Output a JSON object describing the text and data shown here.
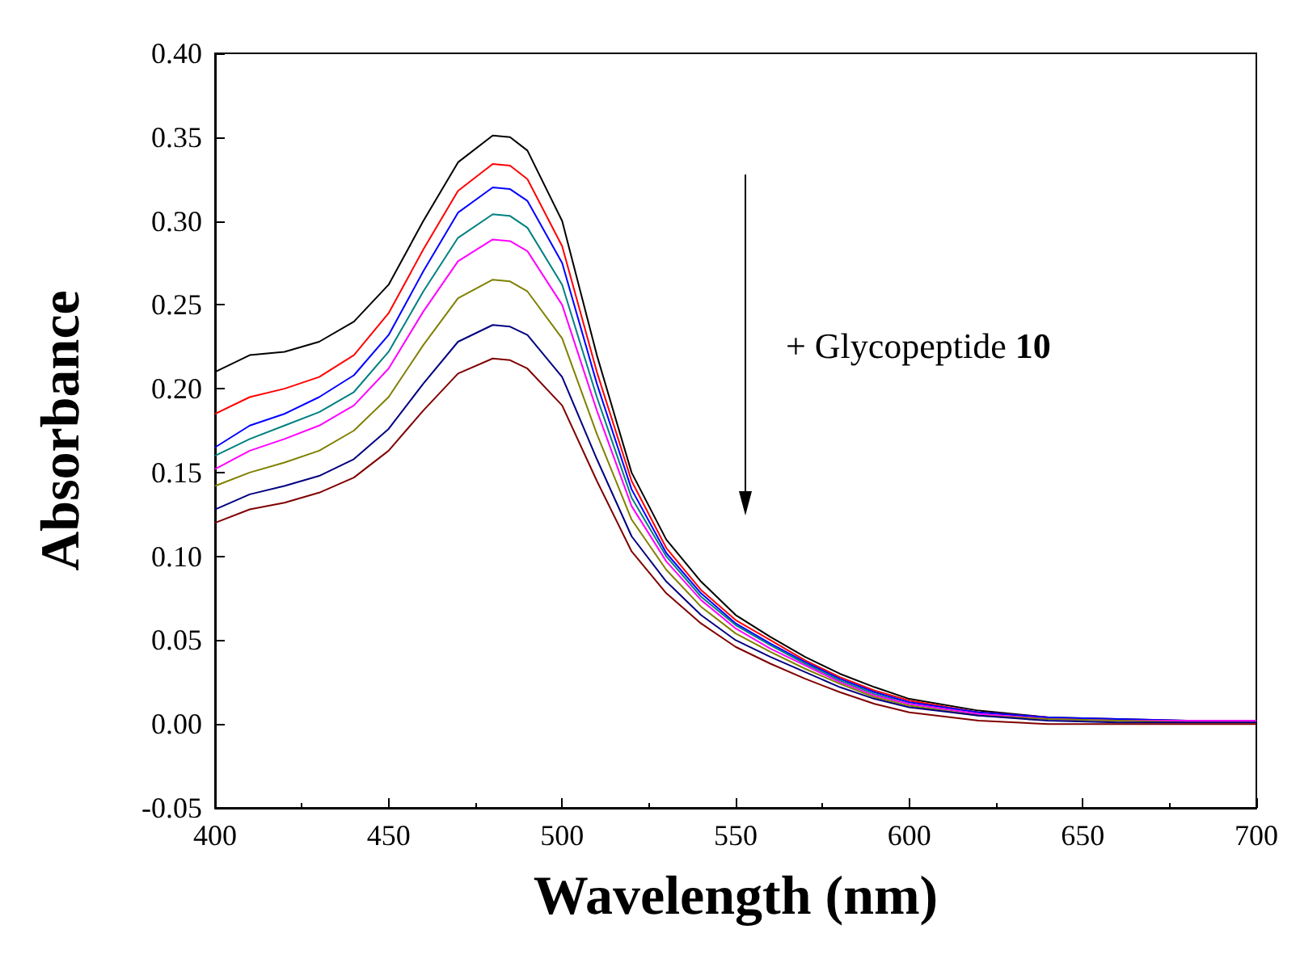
{
  "chart_data": {
    "type": "line",
    "xlabel": "Wavelength (nm)",
    "ylabel": "Absorbance",
    "annotations": [
      "+ Glycopeptide 10"
    ],
    "x": [
      400,
      410,
      420,
      430,
      440,
      450,
      460,
      470,
      480,
      485,
      490,
      500,
      510,
      520,
      530,
      540,
      550,
      560,
      570,
      580,
      590,
      600,
      620,
      640,
      660,
      680,
      700
    ],
    "series": [
      {
        "color": "#000000",
        "values": [
          0.21,
          0.22,
          0.222,
          0.228,
          0.24,
          0.262,
          0.3,
          0.335,
          0.351,
          0.35,
          0.342,
          0.3,
          0.22,
          0.15,
          0.11,
          0.085,
          0.065,
          0.052,
          0.04,
          0.03,
          0.022,
          0.015,
          0.008,
          0.004,
          0.003,
          0.002,
          0.002
        ]
      },
      {
        "color": "#ff0000",
        "values": [
          0.185,
          0.195,
          0.2,
          0.207,
          0.22,
          0.245,
          0.283,
          0.318,
          0.334,
          0.333,
          0.325,
          0.285,
          0.21,
          0.145,
          0.105,
          0.08,
          0.062,
          0.05,
          0.038,
          0.028,
          0.02,
          0.014,
          0.007,
          0.004,
          null,
          null,
          null
        ]
      },
      {
        "color": "#0000ff",
        "values": [
          0.165,
          0.178,
          0.185,
          0.195,
          0.208,
          0.232,
          0.27,
          0.305,
          0.32,
          0.319,
          0.312,
          0.275,
          0.203,
          0.14,
          0.102,
          0.078,
          0.06,
          0.048,
          0.037,
          0.027,
          0.019,
          0.013,
          0.007,
          0.004,
          0.003,
          0.002,
          0.002
        ]
      },
      {
        "color": "#008080",
        "values": [
          0.16,
          0.17,
          0.178,
          0.186,
          0.198,
          0.222,
          0.258,
          0.29,
          0.304,
          0.303,
          0.296,
          0.262,
          0.195,
          0.135,
          0.1,
          0.076,
          0.059,
          0.047,
          0.036,
          0.026,
          0.018,
          0.012,
          0.006,
          null,
          null,
          null,
          null
        ]
      },
      {
        "color": "#ff00ff",
        "values": [
          0.152,
          0.163,
          0.17,
          0.178,
          0.19,
          0.212,
          0.246,
          0.276,
          0.289,
          0.288,
          0.282,
          0.25,
          0.187,
          0.13,
          0.097,
          0.074,
          0.057,
          0.045,
          0.035,
          0.025,
          0.017,
          0.012,
          0.006,
          0.003,
          0.002,
          0.002,
          0.002
        ]
      },
      {
        "color": "#808000",
        "values": [
          0.142,
          0.15,
          0.156,
          0.163,
          0.175,
          0.195,
          0.226,
          0.254,
          0.265,
          0.264,
          0.258,
          0.23,
          0.173,
          0.122,
          0.092,
          0.07,
          0.054,
          0.043,
          0.033,
          0.024,
          0.016,
          0.011,
          0.005,
          0.003,
          0.002,
          0.001,
          0.001
        ]
      },
      {
        "color": "#000080",
        "values": [
          0.128,
          0.137,
          0.142,
          0.148,
          0.158,
          0.176,
          0.203,
          0.228,
          0.238,
          0.237,
          0.232,
          0.207,
          0.158,
          0.112,
          0.085,
          0.065,
          0.05,
          0.04,
          0.031,
          0.022,
          0.015,
          0.01,
          0.005,
          0.002,
          0.001,
          0.001,
          0.001
        ]
      },
      {
        "color": "#800000",
        "values": [
          0.12,
          0.128,
          0.132,
          0.138,
          0.147,
          0.163,
          0.187,
          0.209,
          0.218,
          0.217,
          0.212,
          0.19,
          0.145,
          0.103,
          0.078,
          0.06,
          0.046,
          0.036,
          0.027,
          0.019,
          0.012,
          0.007,
          0.002,
          0.0,
          0.0,
          0.0,
          0.0
        ]
      }
    ],
    "xlim": [
      400,
      700
    ],
    "xticks": [
      400,
      450,
      500,
      550,
      600,
      650,
      700
    ],
    "ylim": [
      -0.05,
      0.4
    ],
    "yticks": [
      {
        "value": -0.05,
        "label": "-0.05"
      },
      {
        "value": 0,
        "label": "0.00"
      },
      {
        "value": 0.05,
        "label": "0.05"
      },
      {
        "value": 0.1,
        "label": "0.10"
      },
      {
        "value": 0.15,
        "label": "0.15"
      },
      {
        "value": 0.2,
        "label": "0.20"
      },
      {
        "value": 0.25,
        "label": "0.25"
      },
      {
        "value": 0.3,
        "label": "0.30"
      },
      {
        "value": 0.35,
        "label": "0.35"
      },
      {
        "value": 0.4,
        "label": "0.40"
      }
    ],
    "grid": false,
    "marker": "none",
    "line_style": "solid"
  }
}
